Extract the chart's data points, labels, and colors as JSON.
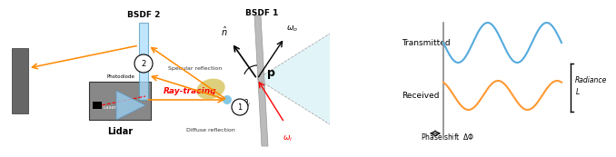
{
  "bg_color": "#ffffff",
  "orange_color": "#FF8800",
  "red_color": "#FF0000",
  "blue_wave_color": "#55AADD",
  "orange_wave_color": "#FF9933",
  "gray_sensor": "#777777",
  "gray_lidar": "#888888",
  "gray_panel": "#aaaaaa",
  "bsdf2_blue": "#88CCEE",
  "bsdf2_face": "#AADDFF",
  "cyan_lobe": "#C0EAF0",
  "yellow_lobe": "#D8C870",
  "labels": {
    "bsdf2": "BSDF 2",
    "bsdf1": "BSDF 1",
    "laser": "Laser",
    "lidar": "Lidar",
    "photodiode": "Photodiode",
    "ray_tracing": "Ray-tracing",
    "specular": "Specular reflection",
    "diffuse": "Diffuse reflection",
    "transmitted": "Transmitted",
    "received": "Received",
    "radiance": "Radiance\n$L$",
    "phase": "Phase shift  $\\Delta\\Phi$",
    "omega_o": "$\\omega_o$",
    "omega_i": "$\\omega_i$",
    "n_hat": "$\\hat{n}$",
    "theta_i": "$\\theta_i$",
    "p_label": "$\\mathbf{p}$",
    "num1": "1",
    "num2": "2"
  }
}
